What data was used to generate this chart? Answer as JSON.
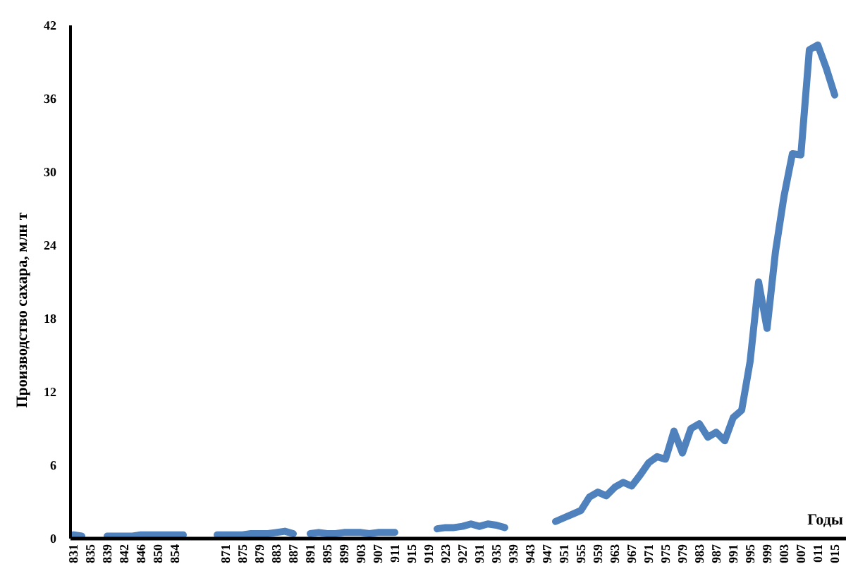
{
  "chart_data": {
    "type": "line",
    "xlabel": "Годы",
    "ylabel": "Производство сахара, млн т",
    "categories": [
      "831",
      null,
      "835",
      null,
      "839",
      null,
      "842",
      null,
      "846",
      null,
      "850",
      null,
      "854",
      null,
      null,
      null,
      null,
      null,
      "871",
      null,
      "875",
      null,
      "879",
      null,
      "883",
      null,
      "887",
      null,
      "891",
      null,
      "895",
      null,
      "899",
      null,
      "903",
      null,
      "907",
      null,
      "911",
      null,
      "915",
      null,
      "919",
      null,
      "923",
      null,
      "927",
      null,
      "931",
      null,
      "935",
      null,
      "939",
      null,
      "943",
      null,
      "947",
      null,
      "951",
      null,
      "955",
      null,
      "959",
      null,
      "963",
      null,
      "967",
      null,
      "971",
      null,
      "975",
      null,
      "979",
      null,
      "983",
      null,
      "987",
      null,
      "991",
      null,
      "995",
      null,
      "999",
      null,
      "003",
      null,
      "007",
      null,
      "011",
      null,
      "015"
    ],
    "series": [
      {
        "color": "#4f81bd",
        "values": [
          0.3,
          0.2,
          null,
          null,
          0.2,
          0.2,
          0.2,
          0.2,
          0.3,
          0.3,
          0.3,
          0.3,
          0.3,
          0.3,
          null,
          null,
          null,
          0.3,
          0.3,
          0.3,
          0.3,
          0.4,
          0.4,
          0.4,
          0.5,
          0.6,
          0.4,
          null,
          0.4,
          0.5,
          0.4,
          0.4,
          0.5,
          0.5,
          0.5,
          0.4,
          0.5,
          0.5,
          0.5,
          null,
          null,
          null,
          null,
          0.8,
          0.9,
          0.9,
          1.0,
          1.2,
          1.0,
          1.2,
          1.1,
          0.9,
          null,
          null,
          null,
          null,
          null,
          1.4,
          1.7,
          2.0,
          2.3,
          3.4,
          3.8,
          3.5,
          4.2,
          4.6,
          4.3,
          5.2,
          6.2,
          6.7,
          6.5,
          8.8,
          7.0,
          9.0,
          9.4,
          8.3,
          8.7,
          8.0,
          9.9,
          10.5,
          14.5,
          21.0,
          17.2,
          23.5,
          28.0,
          31.5,
          31.4,
          40.0,
          40.4,
          38.5,
          36.3
        ]
      }
    ],
    "ylim": [
      0,
      42
    ],
    "yticks": [
      0,
      6,
      12,
      18,
      24,
      30,
      36,
      42
    ],
    "grid": false,
    "marker": "none",
    "line_style": "solid"
  }
}
